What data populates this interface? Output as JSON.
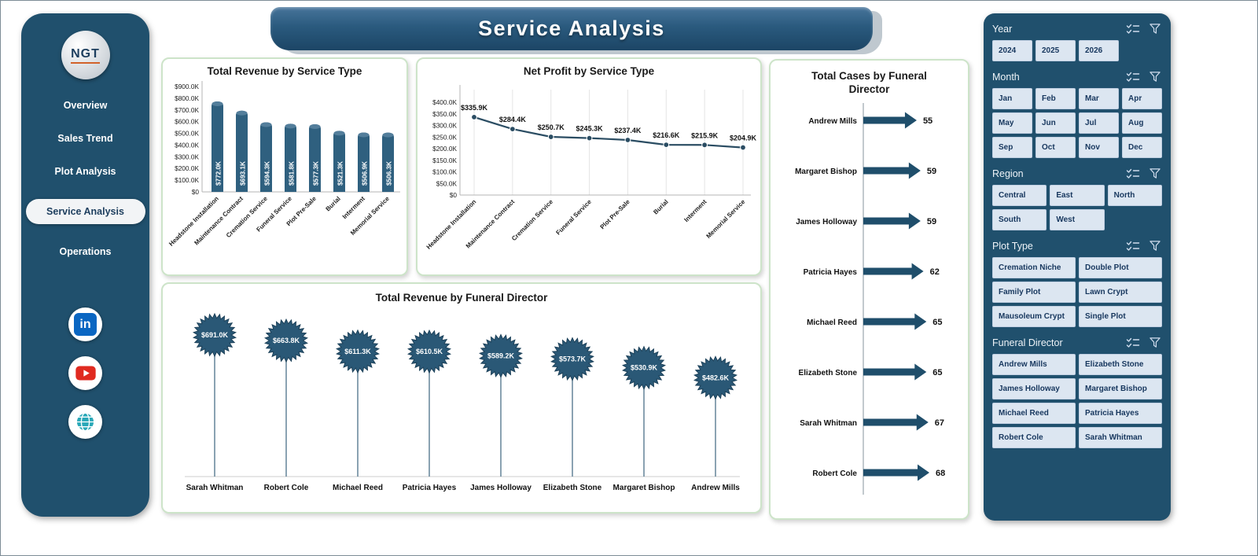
{
  "app": {
    "title": "Service Analysis"
  },
  "colors": {
    "panel": "#20506d",
    "bar": "#2f607f",
    "bar_top": "#537e9b",
    "line": "#2b4d63",
    "star": "#2a5876",
    "star_edge": "#1e425a",
    "arrow": "#1f4e6b",
    "stem": "#648499",
    "card_border": "#cde4c9",
    "slicer_button": "#dce6f1",
    "slicer_text": "#17375e"
  },
  "sidebar": {
    "logo_text": "NGT",
    "items": [
      {
        "label": "Overview",
        "active": false
      },
      {
        "label": "Sales Trend",
        "active": false
      },
      {
        "label": "Plot Analysis",
        "active": false
      },
      {
        "label": "Service Analysis",
        "active": true
      },
      {
        "label": "Operations",
        "active": false
      }
    ]
  },
  "chart_data": [
    {
      "type": "bar",
      "title": "Total Revenue by Service Type",
      "categories": [
        "Headstone Installation",
        "Maintenance Contract",
        "Cremation Service",
        "Funeral Service",
        "Plot Pre-Sale",
        "Burial",
        "Interment",
        "Memorial Service"
      ],
      "values": [
        772.0,
        693.1,
        594.3,
        581.8,
        577.3,
        521.3,
        506.9,
        506.3
      ],
      "value_labels": [
        "$772.0K",
        "$693.1K",
        "$594.3K",
        "$581.8K",
        "$577.3K",
        "$521.3K",
        "$506.9K",
        "$506.3K"
      ],
      "ylim": [
        0,
        900
      ],
      "ytick_labels": [
        "$0",
        "$100.0K",
        "$200.0K",
        "$300.0K",
        "$400.0K",
        "$500.0K",
        "$600.0K",
        "$700.0K",
        "$800.0K",
        "$900.0K"
      ],
      "grid": false,
      "legend": false,
      "xlabel": "",
      "ylabel": ""
    },
    {
      "type": "line",
      "title": "Net Profit by Service Type",
      "categories": [
        "Headstone Installation",
        "Maintenance Contract",
        "Cremation Service",
        "Funeral Service",
        "Plot Pre-Sale",
        "Burial",
        "Interment",
        "Memorial Service"
      ],
      "values": [
        335.9,
        284.4,
        250.7,
        245.3,
        237.4,
        216.6,
        215.9,
        204.9
      ],
      "value_labels": [
        "$335.9K",
        "$284.4K",
        "$250.7K",
        "$245.3K",
        "$237.4K",
        "$216.6K",
        "$215.9K",
        "$204.9K"
      ],
      "ylim": [
        0,
        400
      ],
      "ytick_labels": [
        "$0",
        "$50.0K",
        "$100.0K",
        "$150.0K",
        "$200.0K",
        "$250.0K",
        "$300.0K",
        "$350.0K",
        "$400.0K"
      ],
      "grid": "vertical",
      "legend": false,
      "xlabel": "",
      "ylabel": ""
    },
    {
      "type": "lollipop",
      "title": "Total Revenue by Funeral Director",
      "categories": [
        "Sarah Whitman",
        "Robert Cole",
        "Michael Reed",
        "Patricia Hayes",
        "James Holloway",
        "Elizabeth Stone",
        "Margaret Bishop",
        "Andrew Mills"
      ],
      "values": [
        691.0,
        663.8,
        611.3,
        610.5,
        589.2,
        573.7,
        530.9,
        482.6
      ],
      "value_labels": [
        "$691.0K",
        "$663.8K",
        "$611.3K",
        "$610.5K",
        "$589.2K",
        "$573.7K",
        "$530.9K",
        "$482.6K"
      ],
      "legend": false,
      "xlabel": "",
      "ylabel": ""
    },
    {
      "type": "arrow",
      "title": "Total Cases by Funeral Director",
      "categories": [
        "Andrew Mills",
        "Margaret Bishop",
        "James Holloway",
        "Patricia Hayes",
        "Michael Reed",
        "Elizabeth Stone",
        "Sarah Whitman",
        "Robert Cole"
      ],
      "values": [
        55,
        59,
        59,
        62,
        65,
        65,
        67,
        68
      ],
      "legend": false,
      "xlabel": "",
      "ylabel": ""
    }
  ],
  "slicers": [
    {
      "title": "Year",
      "cols": 4,
      "options": [
        "2024",
        "2025",
        "2026"
      ]
    },
    {
      "title": "Month",
      "cols": 4,
      "options": [
        "Jan",
        "Feb",
        "Mar",
        "Apr",
        "May",
        "Jun",
        "Jul",
        "Aug",
        "Sep",
        "Oct",
        "Nov",
        "Dec"
      ]
    },
    {
      "title": "Region",
      "cols": 3,
      "options": [
        "Central",
        "East",
        "North",
        "South",
        "West"
      ]
    },
    {
      "title": "Plot Type",
      "cols": 2,
      "options": [
        "Cremation Niche",
        "Double Plot",
        "Family Plot",
        "Lawn Crypt",
        "Mausoleum Crypt",
        "Single Plot"
      ]
    },
    {
      "title": "Funeral Director",
      "cols": 2,
      "options": [
        "Andrew Mills",
        "Elizabeth Stone",
        "James Holloway",
        "Margaret Bishop",
        "Michael Reed",
        "Patricia Hayes",
        "Robert Cole",
        "Sarah Whitman"
      ]
    }
  ]
}
